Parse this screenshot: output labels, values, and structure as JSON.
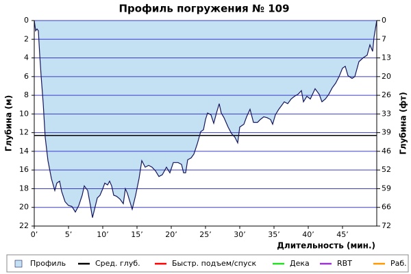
{
  "chart_data": {
    "type": "area",
    "title": "Профиль погружения № 109",
    "x_label": "Длительность (мин.)",
    "y_label": "Глубина (м)",
    "y2_label": "Глубина (фт)",
    "xlim": [
      0,
      50
    ],
    "xticks": [
      {
        "value": 0,
        "label": "0’"
      },
      {
        "value": 5,
        "label": "5’"
      },
      {
        "value": 10,
        "label": "10’"
      },
      {
        "value": 15,
        "label": "15’"
      },
      {
        "value": 20,
        "label": "20’"
      },
      {
        "value": 25,
        "label": "25’"
      },
      {
        "value": 30,
        "label": "30’"
      },
      {
        "value": 35,
        "label": "35’"
      },
      {
        "value": 40,
        "label": "40’"
      },
      {
        "value": 45,
        "label": "45’"
      }
    ],
    "ylim": [
      0,
      22
    ],
    "y_inverted": true,
    "yticks": [
      0,
      2,
      4,
      6,
      8,
      10,
      12,
      14,
      16,
      18,
      20,
      22
    ],
    "y2lim": [
      0,
      72.18
    ],
    "y2ticks": [
      {
        "value": 0,
        "label": "0"
      },
      {
        "value": 6.56,
        "label": "7"
      },
      {
        "value": 13.12,
        "label": "13"
      },
      {
        "value": 19.69,
        "label": "20"
      },
      {
        "value": 26.25,
        "label": "26"
      },
      {
        "value": 32.81,
        "label": "33"
      },
      {
        "value": 39.37,
        "label": "39"
      },
      {
        "value": 45.93,
        "label": "46"
      },
      {
        "value": 52.49,
        "label": "52"
      },
      {
        "value": 59.06,
        "label": "59"
      },
      {
        "value": 65.62,
        "label": "66"
      },
      {
        "value": 72.18,
        "label": "72"
      }
    ],
    "grid": true,
    "grid_color": "#3b3bc8",
    "x": [
      0,
      0.2,
      0.4,
      0.6,
      0.8,
      1.0,
      1.3,
      1.6,
      2.0,
      2.5,
      3.0,
      3.3,
      3.7,
      4.0,
      4.5,
      5.0,
      5.5,
      6.0,
      6.5,
      7.0,
      7.3,
      7.8,
      8.2,
      8.5,
      8.8,
      9.2,
      9.6,
      10.0,
      10.3,
      10.7,
      11.0,
      11.3,
      11.6,
      12.0,
      12.5,
      13.0,
      13.3,
      13.6,
      14.3,
      14.8,
      15.3,
      15.7,
      16.2,
      16.7,
      17.2,
      17.7,
      18.2,
      18.7,
      19.3,
      19.8,
      20.3,
      21.0,
      21.5,
      21.8,
      22.1,
      22.4,
      22.9,
      23.3,
      23.8,
      24.3,
      24.7,
      25.0,
      25.3,
      25.8,
      26.2,
      26.6,
      27.0,
      27.3,
      27.7,
      28.3,
      28.8,
      29.3,
      29.7,
      30.0,
      30.6,
      31.0,
      31.5,
      32.0,
      32.6,
      33.0,
      33.5,
      34.0,
      34.5,
      34.8,
      35.2,
      35.7,
      36.0,
      36.5,
      37.0,
      37.5,
      38.0,
      38.5,
      39.0,
      39.3,
      39.8,
      40.3,
      41.0,
      41.6,
      42.0,
      42.5,
      43.0,
      43.5,
      44.0,
      44.5,
      45.0,
      45.4,
      45.8,
      46.4,
      46.8,
      47.4,
      48.0,
      48.6,
      49.0,
      49.4,
      49.6,
      50.0
    ],
    "series": [
      {
        "name": "Профиль",
        "color": "#c4e1f3",
        "line_color": "#14145a",
        "values": [
          0,
          1.1,
          0.9,
          1.1,
          3.7,
          5.9,
          8.8,
          12.5,
          15.0,
          16.9,
          18.2,
          17.4,
          17.2,
          18.3,
          19.4,
          19.8,
          19.9,
          20.5,
          19.8,
          18.7,
          17.7,
          18.2,
          19.8,
          21.1,
          20.2,
          19.0,
          18.7,
          18.0,
          17.4,
          17.6,
          17.2,
          17.7,
          18.7,
          18.8,
          19.1,
          19.6,
          18.0,
          18.5,
          20.2,
          18.7,
          16.9,
          15.0,
          15.7,
          15.5,
          15.7,
          16.1,
          16.7,
          16.5,
          15.7,
          16.3,
          15.2,
          15.2,
          15.4,
          16.3,
          16.3,
          14.9,
          14.7,
          14.3,
          13.2,
          11.9,
          11.7,
          10.6,
          9.9,
          10.1,
          11.0,
          9.9,
          8.9,
          9.9,
          10.4,
          11.4,
          12.1,
          12.5,
          13.1,
          11.4,
          11.1,
          10.3,
          9.5,
          10.9,
          10.9,
          10.6,
          10.3,
          10.4,
          10.6,
          11.1,
          10.1,
          9.5,
          9.2,
          8.7,
          8.9,
          8.4,
          8.1,
          7.9,
          7.5,
          8.7,
          8.1,
          8.4,
          7.3,
          7.9,
          8.7,
          8.4,
          7.9,
          7.2,
          6.7,
          6.0,
          5.1,
          4.9,
          5.9,
          6.2,
          6.0,
          4.4,
          4.0,
          3.7,
          2.6,
          3.3,
          1.8,
          0
        ]
      },
      {
        "name": "Сред. глуб.",
        "color": "#000000",
        "value": 12.3
      },
      {
        "name": "Быстр. подъем/спуск",
        "color": "#ff0000"
      },
      {
        "name": "Дека",
        "color": "#22dd22"
      },
      {
        "name": "RBT",
        "color": "#9933cc"
      },
      {
        "name": "Раб.",
        "color": "#ff9900"
      }
    ]
  }
}
